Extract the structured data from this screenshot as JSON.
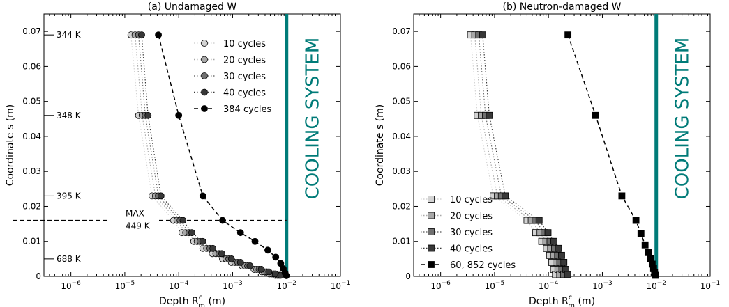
{
  "chart_data": [
    {
      "type": "scatter",
      "title": "(a) Undamaged W",
      "xlabel_base": "Depth R",
      "xlabel_sub": "m",
      "xlabel_sup": "c",
      "xlabel_unit": " (m)",
      "ylabel": "Coordinate s  (m)",
      "xscale": "log",
      "xlim_exp": [
        -6.5,
        -1
      ],
      "ylim": [
        0,
        0.075
      ],
      "xticks": [
        {
          "exp": -6,
          "label": "10",
          "sup": "−6"
        },
        {
          "exp": -5,
          "label": "10",
          "sup": "−5"
        },
        {
          "exp": -4,
          "label": "10",
          "sup": "−4"
        },
        {
          "exp": -3,
          "label": "10",
          "sup": "−3"
        },
        {
          "exp": -2,
          "label": "10",
          "sup": "−2"
        },
        {
          "exp": -1,
          "label": "10",
          "sup": "−1"
        }
      ],
      "yticks": [
        0,
        0.01,
        0.02,
        0.03,
        0.04,
        0.05,
        0.06,
        0.07
      ],
      "ytick_labels": [
        "0",
        "0.01",
        "0.02",
        "0.03",
        "0.04",
        "0.05",
        "0.06",
        "0.07"
      ],
      "cooling_label": "COOLING SYSTEM",
      "cooling_x": 0.01,
      "cooling_color": "#007b78",
      "temperature_marks": [
        {
          "label": "344 K",
          "y": 0.069
        },
        {
          "label": "348 K",
          "y": 0.046
        },
        {
          "label": "395 K",
          "y": 0.023
        },
        {
          "label": "688 K",
          "y": 0.005
        }
      ],
      "max_line": {
        "y": 0.016,
        "label1": "MAX",
        "label2": "449 K"
      },
      "legend_position": "upper-right",
      "marker": "circle",
      "series": [
        {
          "name": "10 cycles",
          "color": "#d3d3d3",
          "line": "dotted",
          "x": [
            1.3e-05,
            1.8e-05,
            3.2e-05,
            8e-05,
            0.000115,
            0.00019,
            0.00028,
            0.00042,
            0.00065,
            0.00095,
            0.0015,
            0.0025,
            0.0035,
            0.0048,
            0.0062
          ],
          "y": [
            0.069,
            0.046,
            0.023,
            0.016,
            0.0125,
            0.01,
            0.008,
            0.0065,
            0.005,
            0.004,
            0.003,
            0.002,
            0.0013,
            0.0007,
            0.0003
          ]
        },
        {
          "name": "20 cycles",
          "color": "#a8a8a8",
          "line": "dotted",
          "x": [
            1.55e-05,
            2.1e-05,
            3.7e-05,
            9.3e-05,
            0.000135,
            0.00022,
            0.00033,
            0.00049,
            0.00075,
            0.0011,
            0.0017,
            0.0028,
            0.0039,
            0.0053,
            0.0068
          ],
          "y": [
            0.069,
            0.046,
            0.023,
            0.016,
            0.0125,
            0.01,
            0.008,
            0.0065,
            0.005,
            0.004,
            0.003,
            0.002,
            0.0013,
            0.0007,
            0.0003
          ]
        },
        {
          "name": "30 cycles",
          "color": "#707070",
          "line": "dotted",
          "x": [
            1.8e-05,
            2.4e-05,
            4.2e-05,
            0.000106,
            0.000155,
            0.00025,
            0.00038,
            0.00056,
            0.00085,
            0.00125,
            0.0019,
            0.0031,
            0.0043,
            0.0058,
            0.0073
          ],
          "y": [
            0.069,
            0.046,
            0.023,
            0.016,
            0.0125,
            0.01,
            0.008,
            0.0065,
            0.005,
            0.004,
            0.003,
            0.002,
            0.0013,
            0.0007,
            0.0003
          ]
        },
        {
          "name": "40 cycles",
          "color": "#383838",
          "line": "dotted",
          "x": [
            2.05e-05,
            2.7e-05,
            4.7e-05,
            0.00012,
            0.000175,
            0.00028,
            0.00043,
            0.00063,
            0.00095,
            0.0014,
            0.0021,
            0.0034,
            0.0047,
            0.0062,
            0.0078
          ],
          "y": [
            0.069,
            0.046,
            0.023,
            0.016,
            0.0125,
            0.01,
            0.008,
            0.0065,
            0.005,
            0.004,
            0.003,
            0.002,
            0.0013,
            0.0007,
            0.0003
          ]
        },
        {
          "name": "384 cycles",
          "color": "#000000",
          "line": "dashed",
          "x": [
            4.2e-05,
            0.0001,
            0.00028,
            0.00065,
            0.0014,
            0.0026,
            0.0045,
            0.0063,
            0.0078,
            0.0087,
            0.0094,
            0.0099
          ],
          "y": [
            0.069,
            0.046,
            0.023,
            0.016,
            0.0125,
            0.01,
            0.0075,
            0.0055,
            0.0037,
            0.0022,
            0.001,
            0.0002
          ]
        }
      ]
    },
    {
      "type": "scatter",
      "title": "(b) Neutron-damaged W",
      "xlabel_base": "Depth R",
      "xlabel_sub": "m",
      "xlabel_sup": "c",
      "xlabel_unit": " (m)",
      "ylabel": "Coordinate s  (m)",
      "xscale": "log",
      "xlim_exp": [
        -6.5,
        -1
      ],
      "ylim": [
        0,
        0.075
      ],
      "xticks": [
        {
          "exp": -6,
          "label": "10",
          "sup": "−6"
        },
        {
          "exp": -5,
          "label": "10",
          "sup": "−5"
        },
        {
          "exp": -4,
          "label": "10",
          "sup": "−4"
        },
        {
          "exp": -3,
          "label": "10",
          "sup": "−3"
        },
        {
          "exp": -2,
          "label": "10",
          "sup": "−2"
        },
        {
          "exp": -1,
          "label": "10",
          "sup": "−1"
        }
      ],
      "yticks": [
        0,
        0.01,
        0.02,
        0.03,
        0.04,
        0.05,
        0.06,
        0.07
      ],
      "ytick_labels": [
        "0",
        "0.01",
        "0.02",
        "0.03",
        "0.04",
        "0.05",
        "0.06",
        "0.07"
      ],
      "cooling_label": "COOLING SYSTEM",
      "cooling_x": 0.01,
      "cooling_color": "#007b78",
      "legend_position": "lower-left",
      "marker": "square",
      "series": [
        {
          "name": "10 cycles",
          "color": "#d3d3d3",
          "line": "dotted",
          "x": [
            3.6e-06,
            4.8e-06,
            9.5e-06,
            4e-05,
            5.8e-05,
            7.5e-05,
            9.2e-05,
            0.000105,
            0.000115,
            0.000125,
            0.000135
          ],
          "y": [
            0.069,
            0.046,
            0.023,
            0.016,
            0.0125,
            0.01,
            0.008,
            0.006,
            0.004,
            0.002,
            0.0005
          ]
        },
        {
          "name": "20 cycles",
          "color": "#a8a8a8",
          "line": "dotted",
          "x": [
            4.3e-06,
            5.7e-06,
            1.13e-05,
            4.8e-05,
            7e-05,
            9e-05,
            0.00011,
            0.000125,
            0.000138,
            0.00015,
            0.000162
          ],
          "y": [
            0.069,
            0.046,
            0.023,
            0.016,
            0.0125,
            0.01,
            0.008,
            0.006,
            0.004,
            0.002,
            0.0005
          ]
        },
        {
          "name": "30 cycles",
          "color": "#707070",
          "line": "dotted",
          "x": [
            5.1e-06,
            6.8e-06,
            1.34e-05,
            5.7e-05,
            8.3e-05,
            0.000107,
            0.00013,
            0.000148,
            0.000163,
            0.000178,
            0.000192
          ],
          "y": [
            0.069,
            0.046,
            0.023,
            0.016,
            0.0125,
            0.01,
            0.008,
            0.006,
            0.004,
            0.002,
            0.0005
          ]
        },
        {
          "name": "40 cycles",
          "color": "#383838",
          "line": "dotted",
          "x": [
            6e-06,
            8e-06,
            1.58e-05,
            6.7e-05,
            9.8e-05,
            0.000126,
            0.000153,
            0.000175,
            0.000193,
            0.00021,
            0.000227
          ],
          "y": [
            0.069,
            0.046,
            0.023,
            0.016,
            0.0125,
            0.01,
            0.008,
            0.006,
            0.004,
            0.002,
            0.0005
          ]
        },
        {
          "name": "60, 852 cycles",
          "color": "#000000",
          "line": "dashed",
          "x": [
            0.00023,
            0.00075,
            0.0023,
            0.0042,
            0.0052,
            0.0062,
            0.0072,
            0.0079,
            0.0084,
            0.0089,
            0.0093,
            0.0097
          ],
          "y": [
            0.069,
            0.046,
            0.023,
            0.016,
            0.0122,
            0.009,
            0.0068,
            0.005,
            0.0035,
            0.0022,
            0.0012,
            0.0003
          ]
        }
      ]
    }
  ]
}
